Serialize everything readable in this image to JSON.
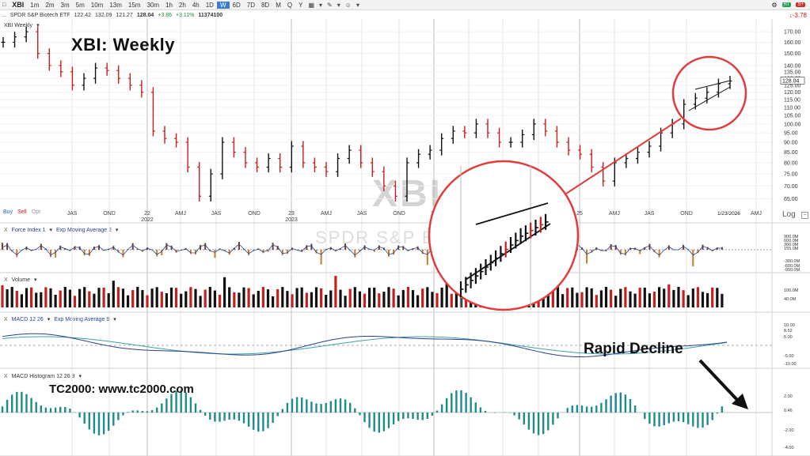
{
  "toolbar": {
    "symbol": "XBI",
    "timeframes": [
      "1m",
      "2m",
      "3m",
      "5m",
      "10m",
      "13m",
      "15m",
      "30m",
      "1h",
      "2h",
      "4h",
      "1D",
      "W",
      "6D",
      "7D",
      "8D",
      "M",
      "Q",
      "Y"
    ],
    "active_timeframe": "W",
    "icons": [
      "back-icon",
      "symbol-icon",
      "chevron-down-icon",
      "bars-icon",
      "chevron-down-icon",
      "drawing-icon",
      "chevron-down-icon",
      "smiley-icon",
      "chevron-down-icon",
      "gear-icon"
    ],
    "rt_label": "RT",
    "sv_label": "S+"
  },
  "quote": {
    "dots": "...",
    "name": "SPDR S&P Biotech ETF",
    "open": "122.42",
    "high": "132.09",
    "low": "121.27",
    "close": "128.04",
    "change": "+3.86",
    "pct": "+3.11%",
    "volume": "11374100",
    "right_change": "-3.78"
  },
  "price_pane": {
    "label": "XBI Weekly",
    "title": "XBI:  Weekly",
    "watermark_symbol": "XBI",
    "watermark_name": "SPDR S&P Biotech ETF",
    "buy": "Buy",
    "sell": "Sell",
    "opt": "Opt",
    "log": "Log",
    "last_price_tag": "128.04",
    "date_marker": "1/23/2026",
    "y_ticks": [
      "170.00",
      "160.00",
      "150.00",
      "140.00",
      "135.00",
      "130.00",
      "125.00",
      "120.00",
      "115.00",
      "110.00",
      "105.00",
      "100.00",
      "95.00",
      "90.00",
      "85.00",
      "80.00",
      "75.00",
      "70.00",
      "65.00"
    ],
    "x_ticks": [
      "JAS",
      "OND",
      "22",
      "AMJ",
      "JAS",
      "OND",
      "23",
      "AMJ",
      "JAS",
      "OND",
      "24",
      "AMJ",
      "JAS",
      "OND",
      "25",
      "AMJ",
      "JAS",
      "OND",
      "AMJ"
    ],
    "year_labels": [
      "2022",
      "2023"
    ]
  },
  "force_pane": {
    "x": "X",
    "ind1": "Force Index 1",
    "ind2": "Exp Moving Average 2",
    "ticks": [
      "900.0M",
      "600.0M",
      "300.0M",
      "155.0M",
      "-300.0M",
      "-600.0M",
      "-900.0M"
    ]
  },
  "volume_pane": {
    "x": "X",
    "ind1": "Volume",
    "ticks": [
      "100.0M",
      "40.0M"
    ]
  },
  "macd_pane": {
    "x": "X",
    "ind1": "MACD 12 26",
    "ind2": "Exp Moving Average 9",
    "ticks": [
      "10.00",
      "8.52",
      "5.00",
      "-5.00",
      "-10.00"
    ]
  },
  "hist_pane": {
    "x": "X",
    "ind1": "MACD Histogram 12 26 9",
    "ticks": [
      "2.00",
      "0.46",
      "-2.00",
      "-4.00"
    ]
  },
  "annotations": {
    "rapid_decline": "Rapid Decline",
    "tc_note": "TC2000:  www.tc2000.com"
  },
  "colors": {
    "up": "#111111",
    "down": "#c81e1e",
    "hist": "#1e8c8c",
    "circle": "#e23b3b",
    "macd_line": "#2a3f8f",
    "signal_line": "#3aa3a3"
  },
  "chart_data": {
    "type": "line",
    "title": "XBI:  Weekly",
    "series": [
      {
        "name": "XBI Weekly",
        "values": [
          160,
          165,
          170,
          150,
          140,
          135,
          125,
          130,
          138,
          136,
          130,
          125,
          120,
          96,
          92,
          90,
          78,
          66,
          75,
          90,
          85,
          80,
          78,
          82,
          78,
          88,
          80,
          78,
          76,
          82,
          86,
          80,
          76,
          70,
          66,
          80,
          84,
          86,
          92,
          96,
          95,
          100,
          95,
          90,
          90,
          94,
          100,
          96,
          90,
          86,
          84,
          78,
          72,
          80,
          82,
          85,
          88,
          95,
          100,
          112,
          116,
          120,
          126,
          128
        ]
      }
    ]
  }
}
